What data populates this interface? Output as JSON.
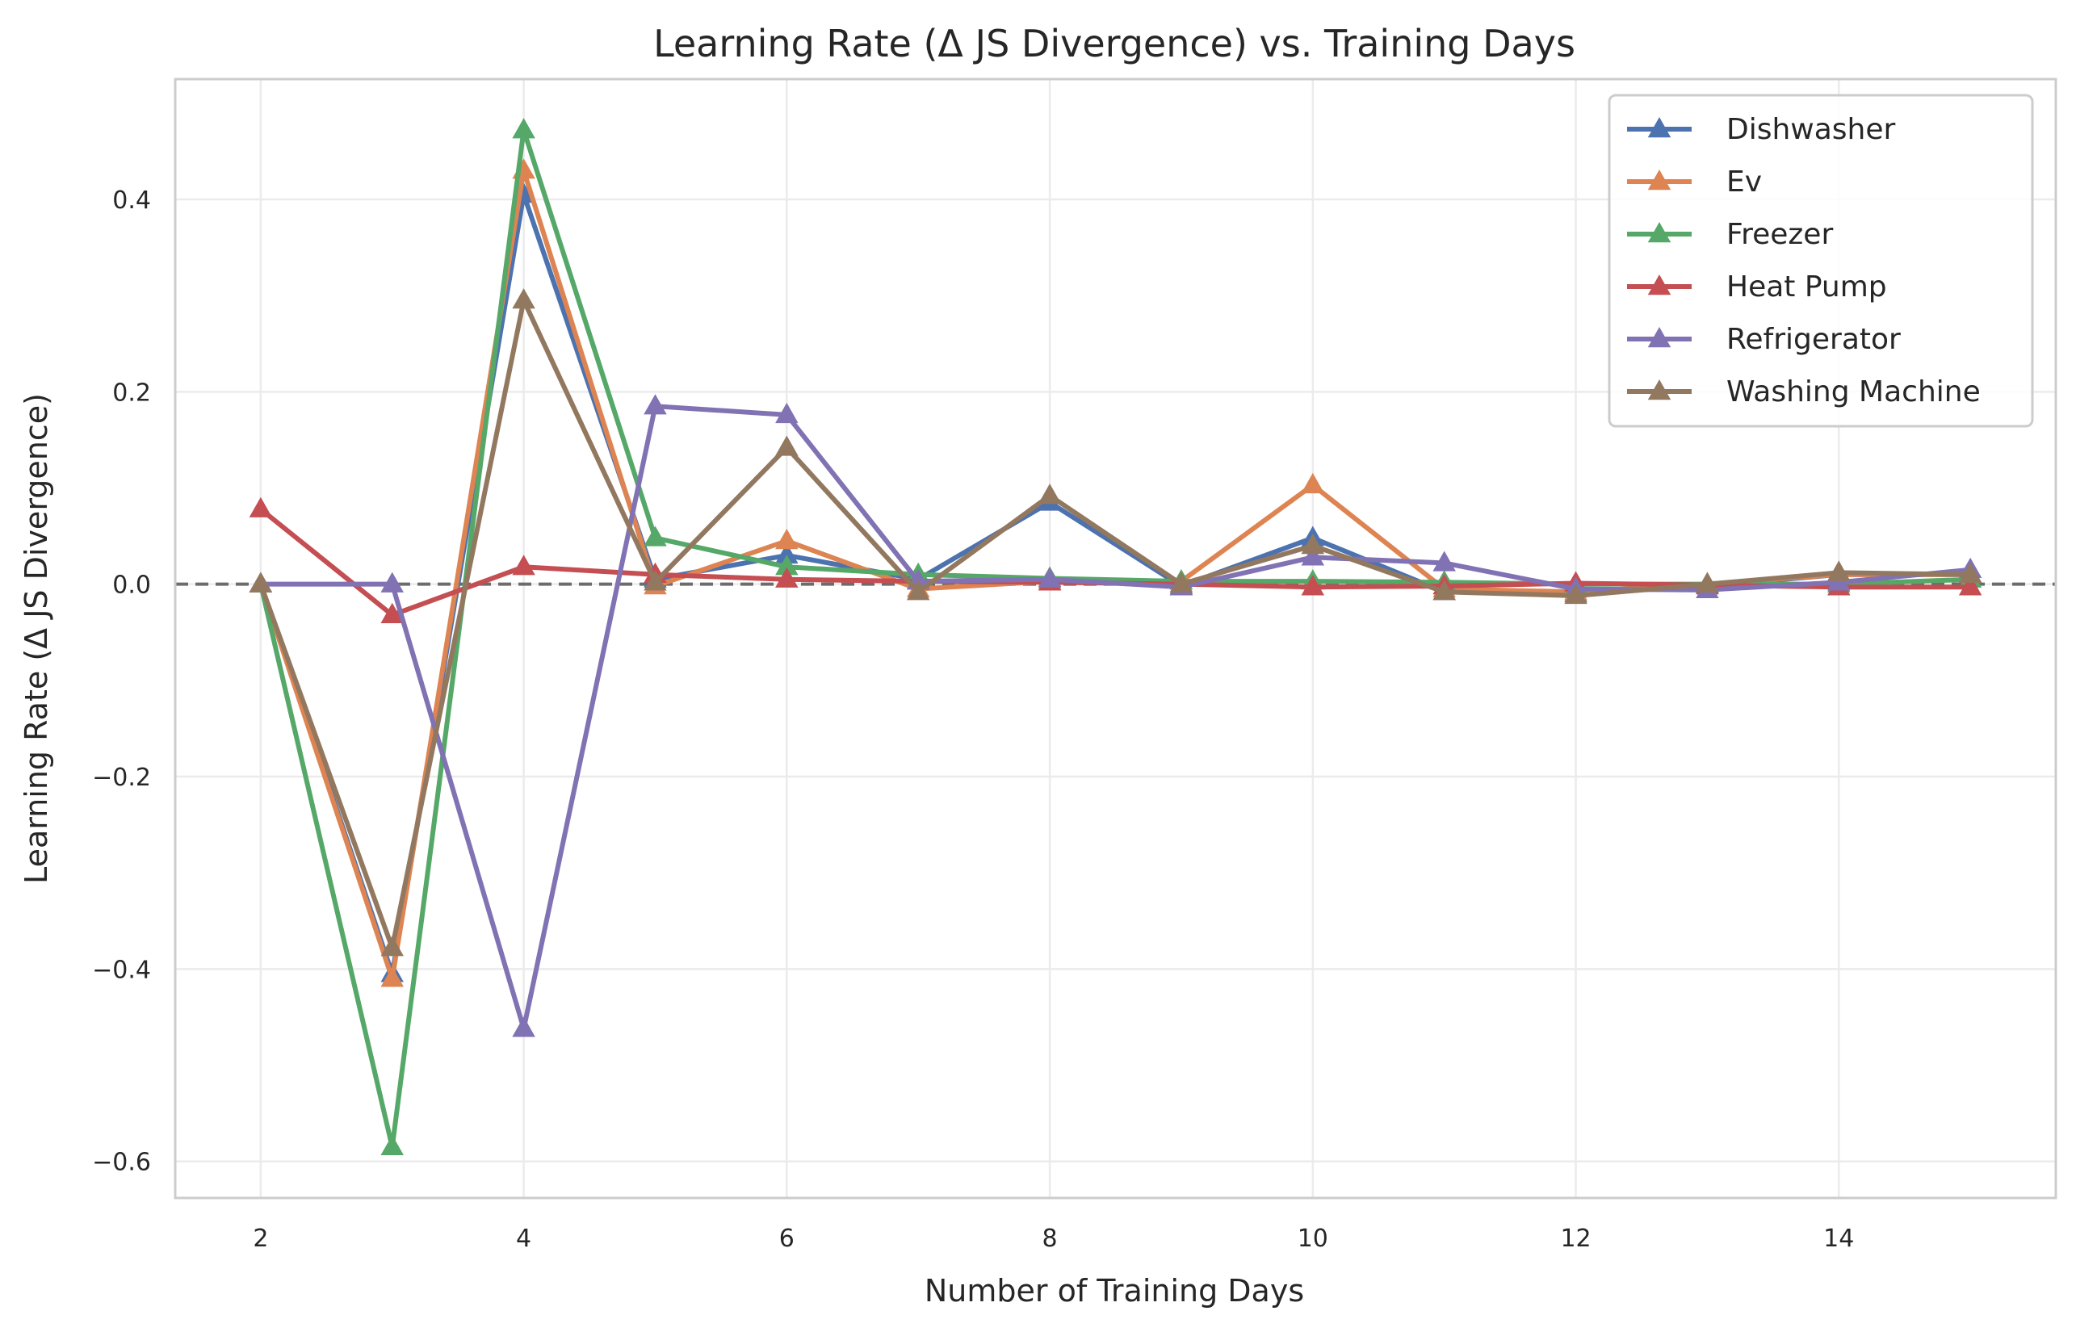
{
  "chart_data": {
    "type": "line",
    "title": "Learning Rate (Δ JS Divergence) vs. Training Days",
    "xlabel": "Number of Training Days",
    "ylabel": "Learning Rate (Δ JS Divergence)",
    "xlim": [
      1.35,
      15.65
    ],
    "ylim": [
      -0.638,
      0.525
    ],
    "xticks": [
      2,
      4,
      6,
      8,
      10,
      12,
      14
    ],
    "xtick_labels": [
      "2",
      "4",
      "6",
      "8",
      "10",
      "12",
      "14"
    ],
    "yticks": [
      -0.6,
      -0.4,
      -0.2,
      0.0,
      0.2,
      0.4
    ],
    "ytick_labels": [
      "−0.6",
      "−0.4",
      "−0.2",
      "0.0",
      "0.2",
      "0.4"
    ],
    "grid": true,
    "legend_position": "top-right",
    "reference_line": {
      "y": 0.0,
      "style": "dashed",
      "color": "#555555"
    },
    "x": [
      2,
      3,
      4,
      5,
      6,
      7,
      8,
      9,
      10,
      11,
      12,
      13,
      14,
      15
    ],
    "series": [
      {
        "name": "Dishwasher",
        "color": "#4c72b0",
        "values": [
          0.0,
          -0.405,
          0.405,
          0.005,
          0.03,
          0.005,
          0.085,
          -0.002,
          0.048,
          -0.008,
          -0.01,
          -0.002,
          0.01,
          0.01
        ]
      },
      {
        "name": "Ev",
        "color": "#dd8452",
        "values": [
          0.0,
          -0.41,
          0.43,
          -0.002,
          0.045,
          -0.005,
          0.003,
          0.003,
          0.103,
          -0.005,
          -0.008,
          0.0,
          0.01,
          0.01
        ]
      },
      {
        "name": "Freezer",
        "color": "#55a868",
        "values": [
          0.0,
          -0.585,
          0.472,
          0.048,
          0.018,
          0.01,
          0.006,
          0.003,
          0.003,
          0.002,
          0.0,
          0.0,
          0.0,
          0.005
        ]
      },
      {
        "name": "Heat Pump",
        "color": "#c44e52",
        "values": [
          0.078,
          -0.032,
          0.018,
          0.01,
          0.005,
          0.003,
          0.002,
          0.0,
          -0.003,
          -0.002,
          0.001,
          -0.001,
          -0.003,
          -0.003
        ]
      },
      {
        "name": "Refrigerator",
        "color": "#8172b3",
        "values": [
          0.0,
          0.0,
          -0.462,
          0.185,
          0.176,
          0.003,
          0.005,
          -0.003,
          0.028,
          0.022,
          -0.005,
          -0.006,
          0.002,
          0.015
        ]
      },
      {
        "name": "Washing Machine",
        "color": "#937860",
        "values": [
          0.0,
          -0.378,
          0.295,
          0.002,
          0.142,
          -0.008,
          0.092,
          0.0,
          0.04,
          -0.008,
          -0.012,
          0.0,
          0.012,
          0.01
        ]
      }
    ]
  }
}
